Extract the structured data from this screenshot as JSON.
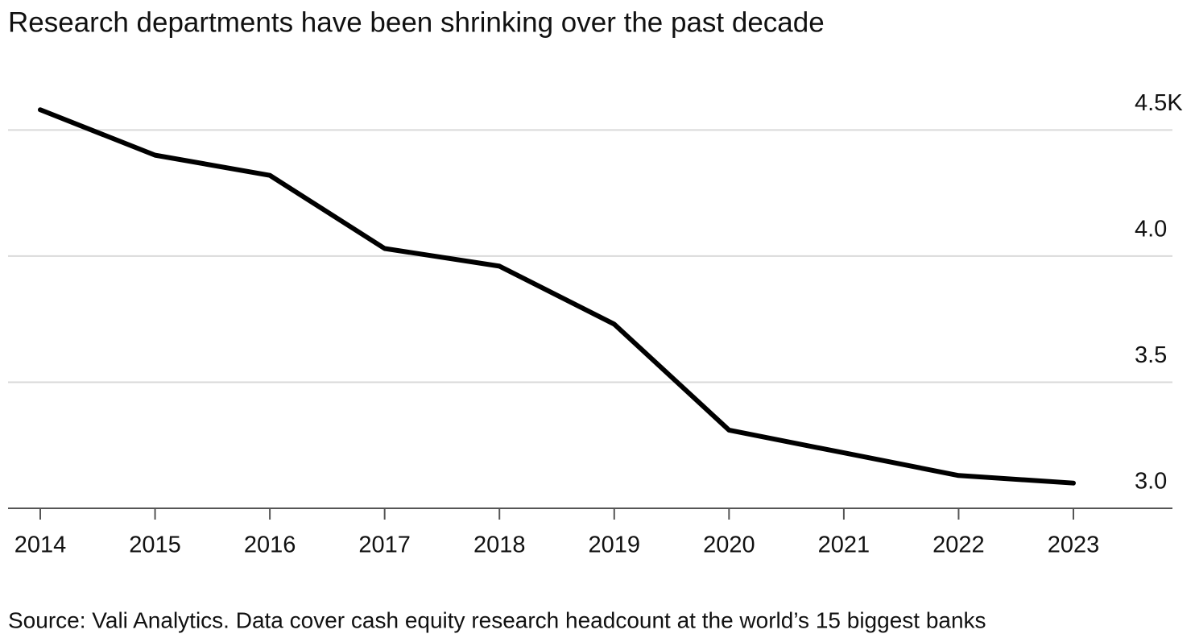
{
  "chart_data": {
    "type": "line",
    "title": "Research departments have been shrinking over the past decade",
    "source": "Source: Vali Analytics. Data cover cash equity research headcount at the world’s 15 biggest banks",
    "categories": [
      "2014",
      "2015",
      "2016",
      "2017",
      "2018",
      "2019",
      "2020",
      "2021",
      "2022",
      "2023"
    ],
    "values": [
      4.58,
      4.4,
      4.32,
      4.03,
      3.96,
      3.73,
      3.31,
      3.22,
      3.13,
      3.1
    ],
    "color": "#000000",
    "ylim": [
      3.0,
      4.6
    ],
    "yticks": [
      {
        "value": 3,
        "label": "3.0"
      },
      3.5,
      {
        "value": 4,
        "label": "4.0"
      },
      {
        "value": 4.5,
        "label": "4.5K"
      }
    ],
    "grid": true
  }
}
